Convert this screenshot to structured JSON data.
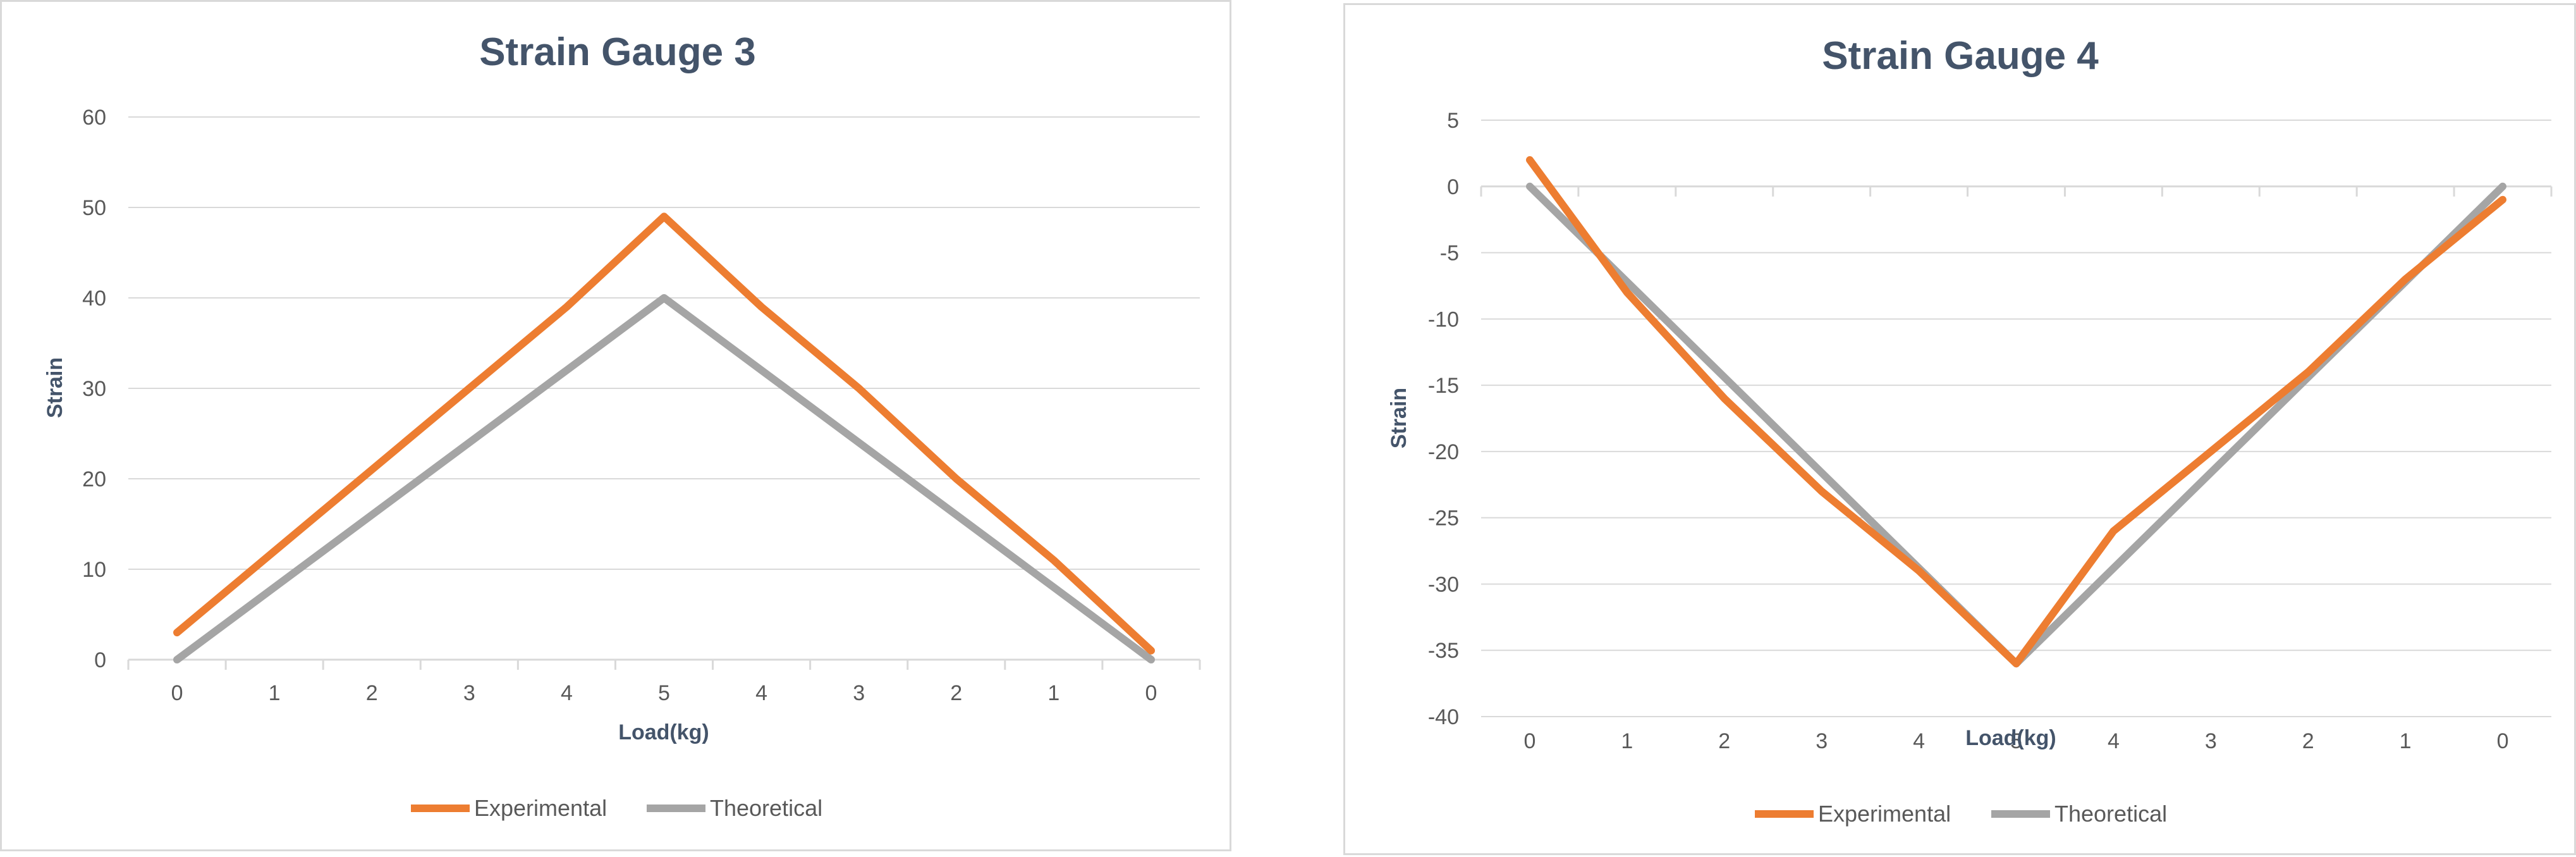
{
  "chart_data": [
    {
      "type": "line",
      "title": "Strain Gauge 3",
      "xlabel": "Load(kg)",
      "ylabel": "Strain",
      "categories": [
        "0",
        "1",
        "2",
        "3",
        "4",
        "5",
        "4",
        "3",
        "2",
        "1",
        "0"
      ],
      "yticks": [
        "60",
        "50",
        "40",
        "30",
        "20",
        "10",
        "0"
      ],
      "ylim": [
        0,
        60
      ],
      "grid": true,
      "legend_position": "bottom",
      "series": [
        {
          "name": "Experimental",
          "color": "#ed7d31",
          "values": [
            3,
            12,
            21,
            30,
            39,
            49,
            39,
            30,
            20,
            11,
            1
          ]
        },
        {
          "name": "Theoretical",
          "color": "#a5a5a5",
          "values": [
            0,
            8,
            16,
            24,
            32,
            40,
            32,
            24,
            16,
            8,
            0
          ]
        }
      ]
    },
    {
      "type": "line",
      "title": "Strain Gauge 4",
      "xlabel": "Load(kg)",
      "ylabel": "Strain",
      "categories": [
        "0",
        "1",
        "2",
        "3",
        "4",
        "5",
        "4",
        "3",
        "2",
        "1",
        "0"
      ],
      "yticks": [
        "5",
        "0",
        "-5",
        "-10",
        "-15",
        "-20",
        "-25",
        "-30",
        "-35",
        "-40"
      ],
      "ylim": [
        -40,
        5
      ],
      "grid": true,
      "legend_position": "bottom",
      "series": [
        {
          "name": "Experimental",
          "color": "#ed7d31",
          "values": [
            2,
            -8,
            -16,
            -23,
            -29,
            -36,
            -26,
            -20,
            -14,
            -7,
            -1
          ]
        },
        {
          "name": "Theoretical",
          "color": "#a5a5a5",
          "values": [
            0,
            -7.2,
            -14.4,
            -21.6,
            -28.8,
            -36,
            -28.8,
            -21.6,
            -14.4,
            -7.2,
            0
          ]
        }
      ]
    }
  ]
}
